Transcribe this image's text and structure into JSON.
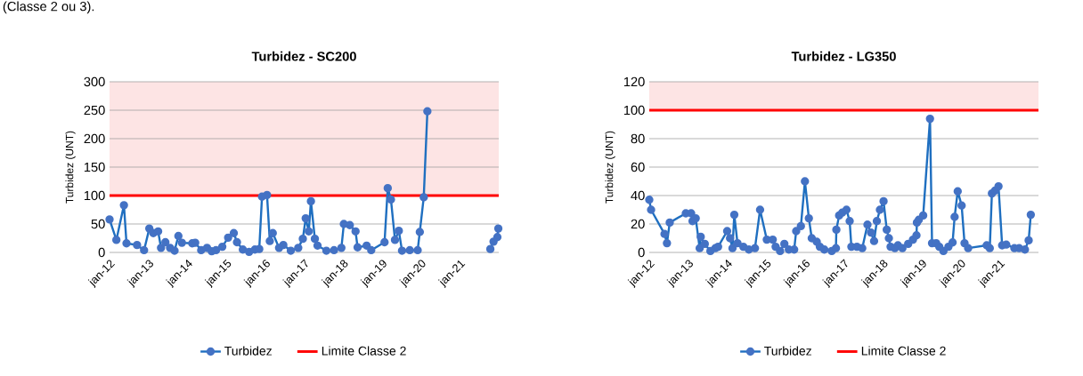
{
  "chart_data": [
    {
      "type": "line",
      "title": "Turbidez - SC200",
      "ylabel": "Turbidez (UNT)",
      "annotations": [
        "(Classe 2 ou 3)."
      ],
      "xlim": [
        "2012-01-01",
        "2022-01-01"
      ],
      "xticks": [
        {
          "value": "2012-01",
          "label": "jan-12"
        },
        {
          "value": "2013-01",
          "label": "jan-13"
        },
        {
          "value": "2014-01",
          "label": "jan-14"
        },
        {
          "value": "2015-01",
          "label": "jan-15"
        },
        {
          "value": "2016-01",
          "label": "jan-16"
        },
        {
          "value": "2017-01",
          "label": "jan-17"
        },
        {
          "value": "2018-01",
          "label": "jan-18"
        },
        {
          "value": "2019-01",
          "label": "jan-19"
        },
        {
          "value": "2020-01",
          "label": "jan-20"
        },
        {
          "value": "2021-01",
          "label": "jan-21"
        }
      ],
      "ylim": [
        0,
        300
      ],
      "yticks": [
        0,
        50,
        100,
        150,
        200,
        250,
        300
      ],
      "grid": "y",
      "legend": "bottom",
      "marker": "circle",
      "series": [
        {
          "name": "Turbidez",
          "color": "#1f6fc0",
          "x": [
            "2012-01-01",
            "2012-03-05",
            "2012-05-15",
            "2012-06-08",
            "2012-09-15",
            "2012-11-20",
            "2013-01-08",
            "2013-02-15",
            "2013-04-01",
            "2013-04-28",
            "2013-06-08",
            "2013-07-22",
            "2013-09-02",
            "2013-10-08",
            "2013-11-10",
            "2014-02-15",
            "2014-03-15",
            "2014-05-10",
            "2014-07-04",
            "2014-08-17",
            "2014-09-26",
            "2014-11-24",
            "2015-01-18",
            "2015-03-12",
            "2015-04-11",
            "2015-06-05",
            "2015-08-03",
            "2015-09-26",
            "2015-11-06",
            "2015-12-02",
            "2016-01-18",
            "2016-02-13",
            "2016-03-12",
            "2016-05-10",
            "2016-06-19",
            "2016-08-28",
            "2016-11-06",
            "2016-12-19",
            "2017-01-15",
            "2017-02-13",
            "2017-03-05",
            "2017-04-11",
            "2017-05-06",
            "2017-07-28",
            "2017-10-08",
            "2017-12-16",
            "2018-01-08",
            "2018-03-05",
            "2018-04-28",
            "2018-05-17",
            "2018-08-10",
            "2018-09-22",
            "2019-01-25",
            "2019-02-24",
            "2019-03-26",
            "2019-05-03",
            "2019-06-08",
            "2019-07-08",
            "2019-09-19",
            "2019-12-02",
            "2019-12-22",
            "2020-01-28",
            "2020-03-02",
            "2021-01-01",
            "2021-10-14",
            "2021-11-13",
            "2021-12-19",
            "2021-12-28"
          ],
          "values": [
            58,
            22,
            83,
            16,
            13,
            4,
            42,
            34,
            37,
            8,
            18,
            8,
            3,
            29,
            17,
            16,
            17,
            4,
            8,
            2,
            4,
            10,
            26,
            34,
            18,
            5,
            1,
            5,
            6,
            98,
            101,
            20,
            34,
            8,
            13,
            3,
            8,
            24,
            60,
            37,
            90,
            24,
            12,
            3,
            4,
            8,
            50,
            48,
            37,
            9,
            12,
            4,
            18,
            113,
            93,
            22,
            38,
            3,
            4,
            4,
            36,
            97,
            248,
            null,
            6,
            19,
            27,
            42
          ]
        }
      ],
      "ref_lines": [
        {
          "axis": "y",
          "value": 100,
          "label": "Limite Classe 2",
          "color": "#ff0000"
        }
      ],
      "bands": [
        {
          "axis": "y",
          "from": 100,
          "to": 300,
          "color": "#fde4e4"
        }
      ]
    },
    {
      "type": "line",
      "title": "Turbidez - LG350",
      "ylabel": "Turbidez (UNT)",
      "xlim": [
        "2012-01-01",
        "2022-01-01"
      ],
      "xticks": [
        {
          "value": "2012-01",
          "label": "jan-12"
        },
        {
          "value": "2013-01",
          "label": "jan-13"
        },
        {
          "value": "2014-01",
          "label": "jan-14"
        },
        {
          "value": "2015-01",
          "label": "jan-15"
        },
        {
          "value": "2016-01",
          "label": "jan-16"
        },
        {
          "value": "2017-01",
          "label": "jan-17"
        },
        {
          "value": "2018-01",
          "label": "jan-18"
        },
        {
          "value": "2019-01",
          "label": "jan-19"
        },
        {
          "value": "2020-01",
          "label": "jan-20"
        },
        {
          "value": "2021-01",
          "label": "jan-21"
        }
      ],
      "ylim": [
        0,
        120
      ],
      "yticks": [
        0,
        20,
        40,
        60,
        80,
        100,
        120
      ],
      "grid": "y",
      "legend": "bottom",
      "marker": "circle",
      "series": [
        {
          "name": "Turbidez",
          "color": "#1f6fc0",
          "x": [
            "2012-01-01",
            "2012-01-18",
            "2012-05-23",
            "2012-06-15",
            "2012-07-11",
            "2012-12-09",
            "2013-01-28",
            "2013-02-10",
            "2013-03-12",
            "2013-04-18",
            "2013-04-28",
            "2013-06-05",
            "2013-07-28",
            "2013-09-12",
            "2013-10-08",
            "2014-01-01",
            "2014-01-28",
            "2014-02-20",
            "2014-03-09",
            "2014-04-08",
            "2014-06-02",
            "2014-07-24",
            "2014-09-19",
            "2014-11-06",
            "2015-01-08",
            "2015-03-05",
            "2015-04-01",
            "2015-05-13",
            "2015-06-22",
            "2015-08-03",
            "2015-09-22",
            "2015-10-11",
            "2015-11-24",
            "2016-01-01",
            "2016-02-07",
            "2016-03-05",
            "2016-04-21",
            "2016-05-20",
            "2016-07-01",
            "2016-09-09",
            "2016-10-18",
            "2016-10-22",
            "2016-11-17",
            "2016-12-16",
            "2017-01-25",
            "2017-02-24",
            "2017-03-12",
            "2017-05-03",
            "2017-06-22",
            "2017-08-10",
            "2017-09-12",
            "2017-10-11",
            "2017-11-06",
            "2017-12-05",
            "2018-01-08",
            "2018-02-07",
            "2018-02-27",
            "2018-03-15",
            "2018-04-24",
            "2018-05-23",
            "2018-07-04",
            "2018-08-27",
            "2018-10-11",
            "2018-11-13",
            "2018-11-17",
            "2018-12-05",
            "2019-01-15",
            "2019-03-20",
            "2019-04-08",
            "2019-05-17",
            "2019-06-15",
            "2019-07-24",
            "2019-09-09",
            "2019-10-18",
            "2019-11-06",
            "2019-12-05",
            "2020-01-11",
            "2020-02-07",
            "2020-03-12",
            "2020-09-02",
            "2020-10-01",
            "2020-10-21",
            "2020-11-20",
            "2020-12-22",
            "2021-01-25",
            "2021-03-05",
            "2021-05-20",
            "2021-07-04",
            "2021-08-27",
            "2021-10-01",
            "2021-10-21"
          ],
          "values": [
            37,
            30,
            13,
            6.5,
            21,
            27.5,
            27.5,
            22,
            24,
            3,
            11,
            6,
            1,
            3,
            4,
            15,
            10,
            3,
            26.5,
            6.5,
            4,
            2,
            3,
            30,
            9,
            9,
            4,
            1,
            6,
            2,
            2,
            15,
            18.5,
            50,
            24,
            10,
            7.5,
            4,
            2,
            1,
            3,
            16,
            26,
            28,
            30,
            22,
            4,
            4,
            3,
            19.5,
            14,
            8,
            22,
            30,
            36,
            16,
            10,
            4,
            3,
            5,
            3,
            6,
            9,
            12,
            21,
            23,
            26,
            94,
            6.5,
            6.5,
            4,
            1,
            4,
            7,
            25,
            43,
            33,
            6.5,
            3,
            5,
            3,
            41.5,
            43.5,
            46.5,
            5,
            5.5,
            3,
            3,
            2,
            8.5,
            26.5
          ]
        }
      ],
      "ref_lines": [
        {
          "axis": "y",
          "value": 100,
          "label": "Limite Classe 2",
          "color": "#ff0000"
        }
      ],
      "bands": [
        {
          "axis": "y",
          "from": 100,
          "to": 120,
          "color": "#fde4e4"
        }
      ]
    }
  ]
}
